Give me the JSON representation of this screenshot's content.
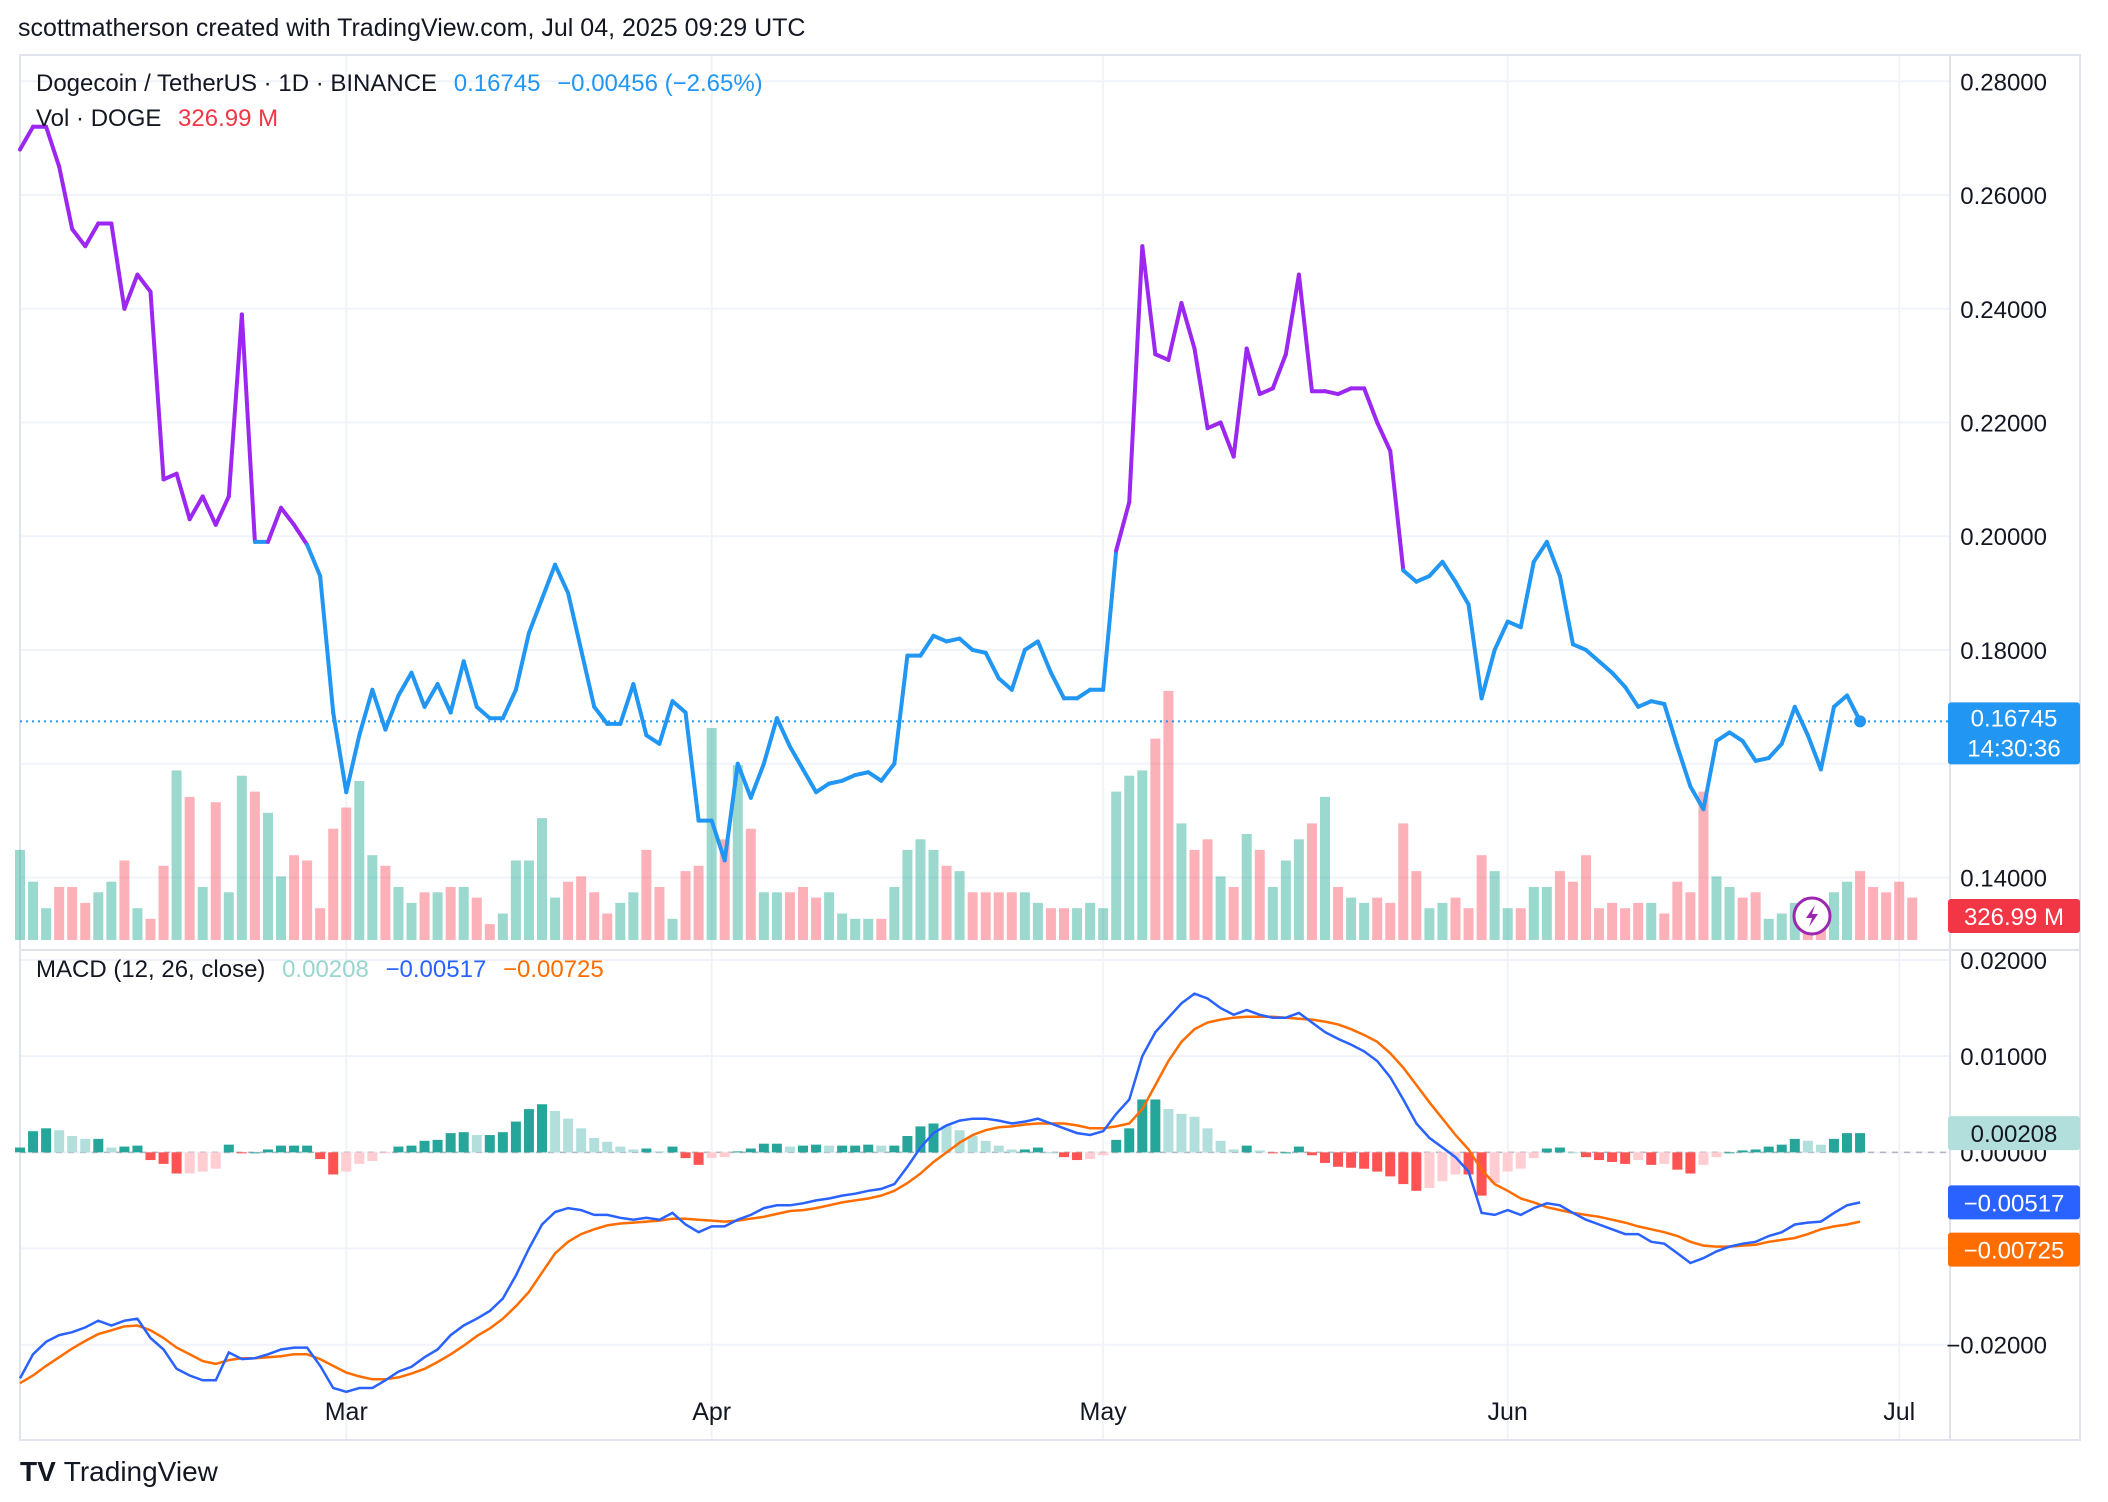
{
  "header": {
    "attribution": "scottmatherson created with TradingView.com, Jul 04, 2025 09:29 UTC"
  },
  "legend": {
    "symbol": "Dogecoin / TetherUS · 1D · BINANCE",
    "price": "0.16745",
    "change": "−0.00456 (−2.65%)",
    "vol_label": "Vol · DOGE",
    "vol_value": "326.99 M",
    "macd_label": "MACD (12, 26, close)",
    "macd_hist": "0.00208",
    "macd_line": "−0.00517",
    "macd_signal": "−0.00725"
  },
  "price_tags": {
    "price": "0.16745",
    "countdown": "14:30:36",
    "volume": "326.99 M",
    "hist": "0.00208",
    "macd": "−0.00517",
    "signal": "−0.00725"
  },
  "footer": {
    "logo": "TV",
    "brand": "TradingView"
  },
  "colors": {
    "purple": "#9c27f0",
    "blue": "#2196f3",
    "up_bar": "#22ab94",
    "down_bar": "#f7525f",
    "macd_line": "#2962ff",
    "signal_line": "#ff6d00",
    "grid": "#f0f3fa"
  },
  "chart_data": [
    {
      "type": "line",
      "title": "Dogecoin / TetherUS · 1D · BINANCE",
      "series": [
        {
          "name": "DOGE/USDT",
          "values": [
            0.268,
            0.272,
            0.272,
            0.265,
            0.254,
            0.251,
            0.255,
            0.255,
            0.24,
            0.246,
            0.243,
            0.21,
            0.211,
            0.203,
            0.207,
            0.202,
            0.207,
            0.239,
            0.199,
            0.199,
            0.205,
            0.202,
            0.1985,
            0.193,
            0.169,
            0.155,
            0.165,
            0.173,
            0.166,
            0.172,
            0.176,
            0.17,
            0.174,
            0.169,
            0.178,
            0.17,
            0.168,
            0.168,
            0.173,
            0.183,
            0.189,
            0.195,
            0.19,
            0.18,
            0.17,
            0.167,
            0.167,
            0.174,
            0.165,
            0.1635,
            0.171,
            0.169,
            0.15,
            0.15,
            0.143,
            0.16,
            0.154,
            0.16,
            0.168,
            0.163,
            0.159,
            0.155,
            0.1565,
            0.157,
            0.158,
            0.1585,
            0.157,
            0.16,
            0.179,
            0.179,
            0.1825,
            0.1815,
            0.182,
            0.18,
            0.1795,
            0.175,
            0.173,
            0.18,
            0.1815,
            0.176,
            0.1715,
            0.1715,
            0.173,
            0.173,
            0.1975,
            0.206,
            0.251,
            0.232,
            0.231,
            0.241,
            0.233,
            0.219,
            0.22,
            0.214,
            0.233,
            0.225,
            0.226,
            0.232,
            0.246,
            0.2255,
            0.2255,
            0.225,
            0.226,
            0.226,
            0.22,
            0.215,
            0.194,
            0.192,
            0.193,
            0.1955,
            0.192,
            0.188,
            0.1715,
            0.18,
            0.185,
            0.184,
            0.1955,
            0.199,
            0.193,
            0.181,
            0.18,
            0.178,
            0.176,
            0.1735,
            0.17,
            0.171,
            0.1705,
            0.163,
            0.156,
            0.152,
            0.164,
            0.1655,
            0.164,
            0.1605,
            0.161,
            0.1635,
            0.17,
            0.165,
            0.159,
            0.17,
            0.172,
            0.1675
          ],
          "start": "2025-02-04",
          "end": "2025-07-04",
          "interval": "1D"
        },
        {
          "name": "Vol · DOGE",
          "values": [
            17,
            11,
            6,
            10,
            10,
            7,
            9,
            11,
            15,
            6,
            4,
            14,
            32,
            27,
            10,
            26,
            9,
            31,
            28,
            24,
            12,
            16,
            15,
            6,
            21,
            25,
            30,
            16,
            14,
            10,
            7,
            9,
            9,
            10,
            10,
            8,
            3,
            5,
            15,
            15,
            23,
            8,
            11,
            12,
            9,
            5,
            7,
            9,
            17,
            10,
            4,
            13,
            14,
            40,
            19,
            33,
            21,
            9,
            9,
            9,
            10,
            8,
            9,
            5,
            4,
            4,
            4,
            10,
            17,
            19,
            17,
            14,
            13,
            9,
            9,
            9,
            9,
            9,
            7,
            6,
            6,
            6,
            7,
            6,
            28,
            31,
            32,
            38,
            47,
            22,
            17,
            19,
            12,
            10,
            20,
            17,
            10,
            15,
            19,
            22,
            27,
            10,
            8,
            7,
            8,
            7,
            22,
            13,
            6,
            7,
            8,
            6,
            16,
            13,
            6,
            6,
            10,
            10,
            13,
            11,
            16,
            6,
            7,
            6,
            7,
            7,
            5,
            11,
            9,
            28,
            12,
            10,
            8,
            9,
            4,
            5,
            7,
            8,
            7,
            9,
            11,
            13,
            10,
            9,
            11,
            8
          ],
          "start": "2025-02-04",
          "end": "2025-07-04",
          "interval": "1D"
        }
      ],
      "yaxis_ticks": [
        "0.28000",
        "0.26000",
        "0.24000",
        "0.22000",
        "0.20000",
        "0.18000",
        "0.14000"
      ],
      "xaxis_ticks": [
        "Mar",
        "Apr",
        "May",
        "Jun",
        "Jul"
      ],
      "ylim": [
        0.129,
        0.2855
      ],
      "last_price": 0.16745
    },
    {
      "type": "line",
      "title": "MACD (12, 26, close)",
      "series": [
        {
          "name": "MACD",
          "values": [
            -0.0235,
            -0.021,
            -0.0197,
            -0.019,
            -0.0187,
            -0.0182,
            -0.0175,
            -0.018,
            -0.0175,
            -0.0173,
            -0.0193,
            -0.0205,
            -0.0225,
            -0.0232,
            -0.0237,
            -0.0237,
            -0.0208,
            -0.0215,
            -0.0214,
            -0.021,
            -0.0205,
            -0.0203,
            -0.0203,
            -0.0222,
            -0.0245,
            -0.0249,
            -0.0245,
            -0.0245,
            -0.0237,
            -0.0228,
            -0.0223,
            -0.0213,
            -0.0205,
            -0.019,
            -0.018,
            -0.0173,
            -0.0165,
            -0.0152,
            -0.0128,
            -0.01,
            -0.0075,
            -0.0062,
            -0.0058,
            -0.006,
            -0.0065,
            -0.0065,
            -0.0068,
            -0.007,
            -0.0068,
            -0.007,
            -0.0063,
            -0.0075,
            -0.0083,
            -0.0077,
            -0.0077,
            -0.007,
            -0.0065,
            -0.0058,
            -0.0055,
            -0.0055,
            -0.0053,
            -0.005,
            -0.0048,
            -0.0045,
            -0.0043,
            -0.004,
            -0.0038,
            -0.0033,
            -0.0015,
            0.0005,
            0.002,
            0.0028,
            0.0033,
            0.0035,
            0.0035,
            0.0033,
            0.003,
            0.0032,
            0.0035,
            0.003,
            0.0025,
            0.002,
            0.0018,
            0.0022,
            0.004,
            0.0055,
            0.01,
            0.0125,
            0.014,
            0.0155,
            0.0165,
            0.016,
            0.015,
            0.0143,
            0.0148,
            0.0143,
            0.014,
            0.014,
            0.0145,
            0.0135,
            0.0125,
            0.0118,
            0.0112,
            0.0105,
            0.0095,
            0.0078,
            0.0055,
            0.003,
            0.0015,
            0.0005,
            -0.0005,
            -0.002,
            -0.0063,
            -0.0065,
            -0.006,
            -0.0065,
            -0.0058,
            -0.0053,
            -0.0055,
            -0.0063,
            -0.007,
            -0.0075,
            -0.008,
            -0.0085,
            -0.0085,
            -0.0093,
            -0.0095,
            -0.0105,
            -0.0115,
            -0.011,
            -0.0103,
            -0.0098,
            -0.0095,
            -0.0093,
            -0.0087,
            -0.0083,
            -0.0075,
            -0.0073,
            -0.0072,
            -0.0063,
            -0.0055,
            -0.0052
          ]
        },
        {
          "name": "Signal",
          "values": [
            -0.024,
            -0.0232,
            -0.0222,
            -0.0213,
            -0.0204,
            -0.0196,
            -0.0189,
            -0.0185,
            -0.0181,
            -0.018,
            -0.0185,
            -0.0193,
            -0.0203,
            -0.021,
            -0.0217,
            -0.022,
            -0.0216,
            -0.0214,
            -0.0214,
            -0.0213,
            -0.0212,
            -0.021,
            -0.021,
            -0.0215,
            -0.0222,
            -0.0229,
            -0.0233,
            -0.0236,
            -0.0236,
            -0.0234,
            -0.023,
            -0.0225,
            -0.0218,
            -0.021,
            -0.0201,
            -0.0191,
            -0.0183,
            -0.0173,
            -0.016,
            -0.0145,
            -0.0125,
            -0.0105,
            -0.0093,
            -0.0085,
            -0.008,
            -0.0076,
            -0.0074,
            -0.0073,
            -0.0072,
            -0.0071,
            -0.0069,
            -0.0069,
            -0.007,
            -0.0071,
            -0.0072,
            -0.0071,
            -0.0069,
            -0.0067,
            -0.0064,
            -0.0061,
            -0.006,
            -0.0058,
            -0.0055,
            -0.0052,
            -0.005,
            -0.0048,
            -0.0045,
            -0.004,
            -0.0032,
            -0.0022,
            -0.001,
            0.0,
            0.001,
            0.0018,
            0.0023,
            0.0026,
            0.0027,
            0.0029,
            0.003,
            0.003,
            0.003,
            0.0028,
            0.0025,
            0.0025,
            0.0027,
            0.003,
            0.0045,
            0.007,
            0.0095,
            0.0115,
            0.0128,
            0.0135,
            0.0138,
            0.014,
            0.0141,
            0.0141,
            0.0141,
            0.014,
            0.0139,
            0.0138,
            0.0136,
            0.0133,
            0.0128,
            0.0122,
            0.0115,
            0.0103,
            0.0088,
            0.007,
            0.0052,
            0.0035,
            0.0018,
            0.0003,
            -0.0018,
            -0.0033,
            -0.004,
            -0.0048,
            -0.0052,
            -0.0057,
            -0.006,
            -0.0063,
            -0.0065,
            -0.0067,
            -0.007,
            -0.0073,
            -0.0077,
            -0.008,
            -0.0083,
            -0.0087,
            -0.0093,
            -0.0097,
            -0.0098,
            -0.0098,
            -0.0097,
            -0.0096,
            -0.0093,
            -0.0091,
            -0.0089,
            -0.0085,
            -0.008,
            -0.0077,
            -0.0075,
            -0.0072
          ]
        }
      ],
      "yaxis_ticks": [
        "0.02000",
        "0.01000",
        "0.00000",
        "−0.02000"
      ],
      "ylim": [
        -0.0297,
        0.02
      ]
    }
  ]
}
